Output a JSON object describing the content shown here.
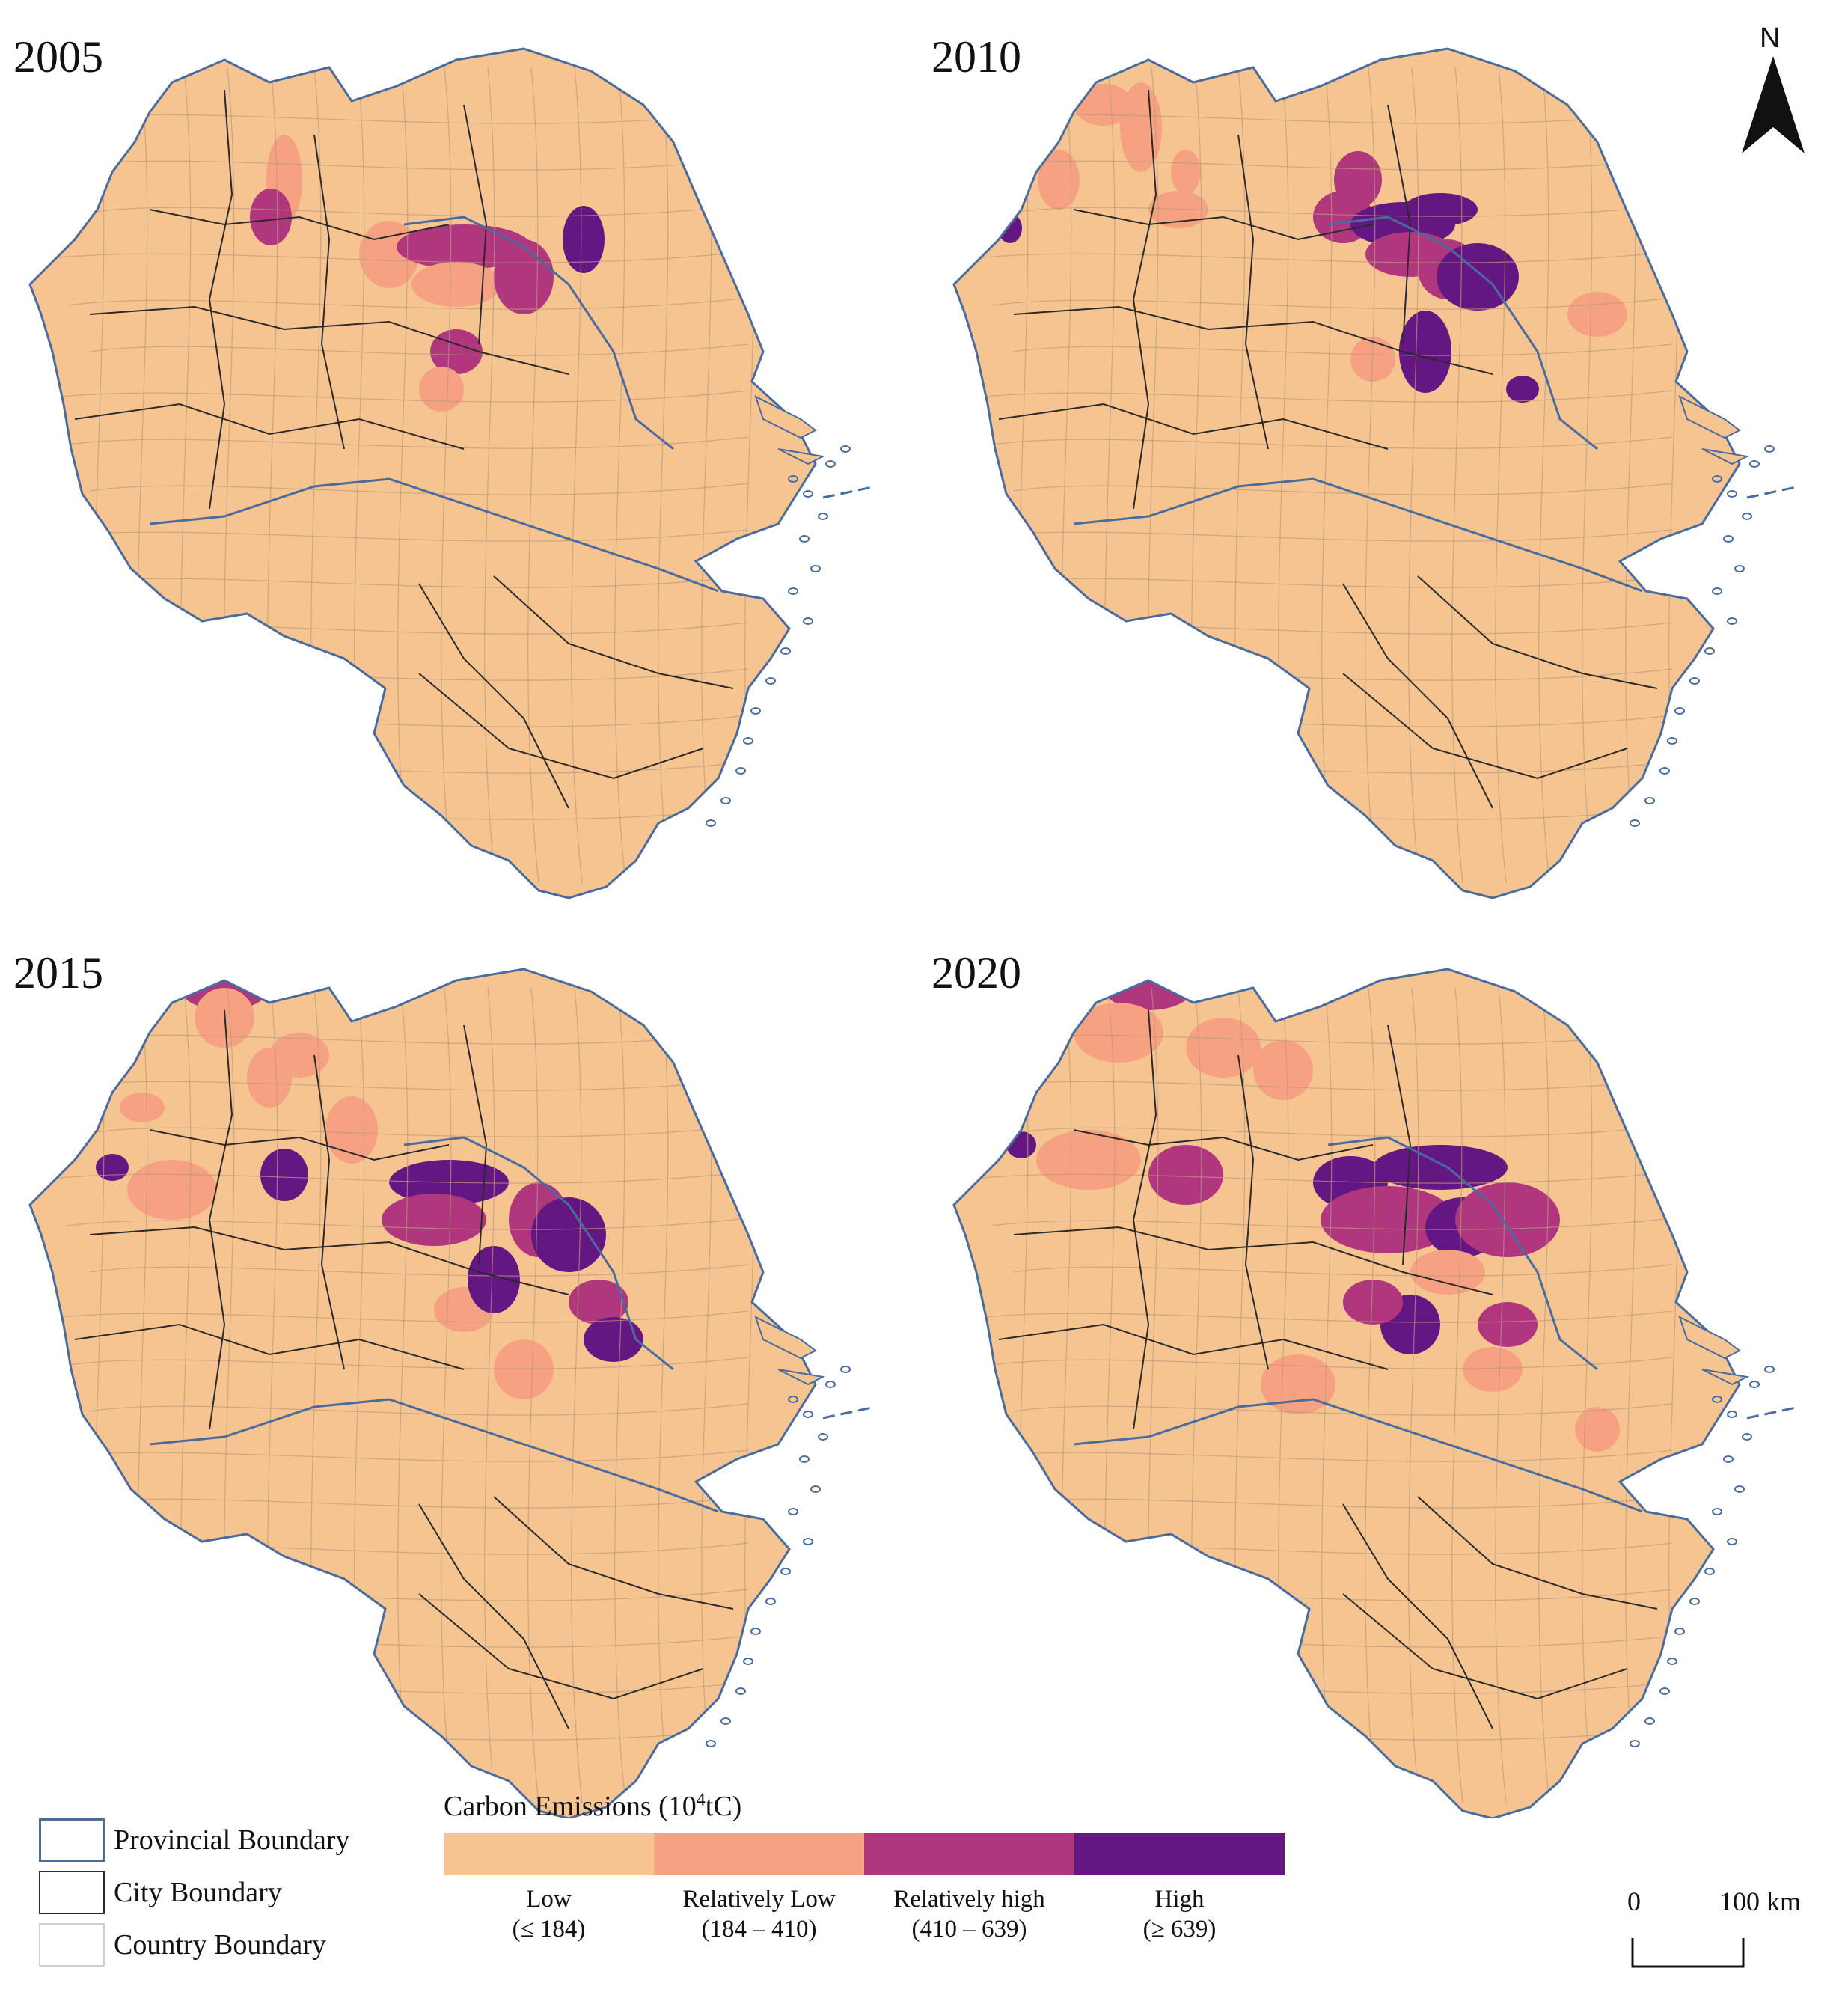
{
  "panels": [
    {
      "year": "2005",
      "id": "p2005"
    },
    {
      "year": "2010",
      "id": "p2010"
    },
    {
      "year": "2015",
      "id": "p2015"
    },
    {
      "year": "2020",
      "id": "p2020"
    }
  ],
  "north_arrow": {
    "label": "N"
  },
  "boundary_legend": {
    "provincial": "Provincial Boundary",
    "city": "City Boundary",
    "country": "Country Boundary"
  },
  "emissions_legend": {
    "title_prefix": "Carbon Emissions (10",
    "title_sup": "4",
    "title_suffix": "tC)",
    "classes": [
      {
        "name": "Low",
        "range": "(≤ 184)",
        "color": "#f5c490"
      },
      {
        "name": "Relatively Low",
        "range": "(184 – 410)",
        "color": "#f6a282"
      },
      {
        "name": "Relatively high",
        "range": "(410 – 639)",
        "color": "#b0377e"
      },
      {
        "name": "High",
        "range": "(≥ 639)",
        "color": "#641683"
      }
    ]
  },
  "scale_bar": {
    "start": "0",
    "end": "100 km"
  },
  "colors": {
    "provincial_boundary": "#4a6b9d",
    "city_boundary": "#2a2a2a",
    "country_boundary": "#b89a7c",
    "sea_islands": "#4a6b9d"
  }
}
